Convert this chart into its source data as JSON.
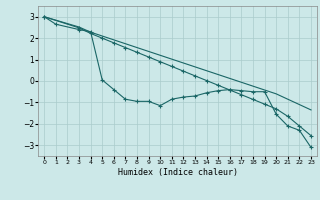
{
  "xlabel": "Humidex (Indice chaleur)",
  "bg_color": "#cce8e8",
  "grid_color": "#aacccc",
  "line_color": "#1a6666",
  "xlim": [
    -0.5,
    23.5
  ],
  "ylim": [
    -3.5,
    3.5
  ],
  "yticks": [
    -3,
    -2,
    -1,
    0,
    1,
    2,
    3
  ],
  "xticks": [
    0,
    1,
    2,
    3,
    4,
    5,
    6,
    7,
    8,
    9,
    10,
    11,
    12,
    13,
    14,
    15,
    16,
    17,
    18,
    19,
    20,
    21,
    22,
    23
  ],
  "line1_x": [
    0,
    1,
    3,
    4,
    5,
    6,
    7,
    8,
    9,
    10,
    11,
    12,
    13,
    14,
    15,
    16,
    17,
    18,
    19,
    20,
    21,
    22,
    23
  ],
  "line1_y": [
    3.0,
    2.65,
    2.4,
    2.3,
    0.05,
    -0.4,
    -0.85,
    -0.95,
    -0.95,
    -1.15,
    -0.85,
    -0.75,
    -0.7,
    -0.55,
    -0.45,
    -0.4,
    -0.45,
    -0.5,
    -0.5,
    -1.55,
    -2.1,
    -2.3,
    -3.1
  ],
  "line2_x": [
    0,
    3,
    4,
    5,
    6,
    7,
    8,
    9,
    10,
    11,
    12,
    13,
    14,
    15,
    16,
    17,
    18,
    19,
    20,
    21,
    22,
    23
  ],
  "line2_y": [
    3.0,
    2.48,
    2.22,
    2.0,
    1.78,
    1.56,
    1.34,
    1.12,
    0.9,
    0.68,
    0.46,
    0.24,
    0.02,
    -0.2,
    -0.42,
    -0.64,
    -0.86,
    -1.08,
    -1.3,
    -1.65,
    -2.1,
    -2.55
  ],
  "line3_x": [
    0,
    3,
    4,
    5,
    6,
    7,
    8,
    9,
    10,
    11,
    12,
    13,
    14,
    15,
    16,
    17,
    18,
    19,
    20,
    21,
    22,
    23
  ],
  "line3_y": [
    3.0,
    2.52,
    2.28,
    2.1,
    1.92,
    1.74,
    1.56,
    1.38,
    1.2,
    1.02,
    0.84,
    0.66,
    0.48,
    0.3,
    0.12,
    -0.06,
    -0.24,
    -0.42,
    -0.6,
    -0.85,
    -1.1,
    -1.35
  ]
}
